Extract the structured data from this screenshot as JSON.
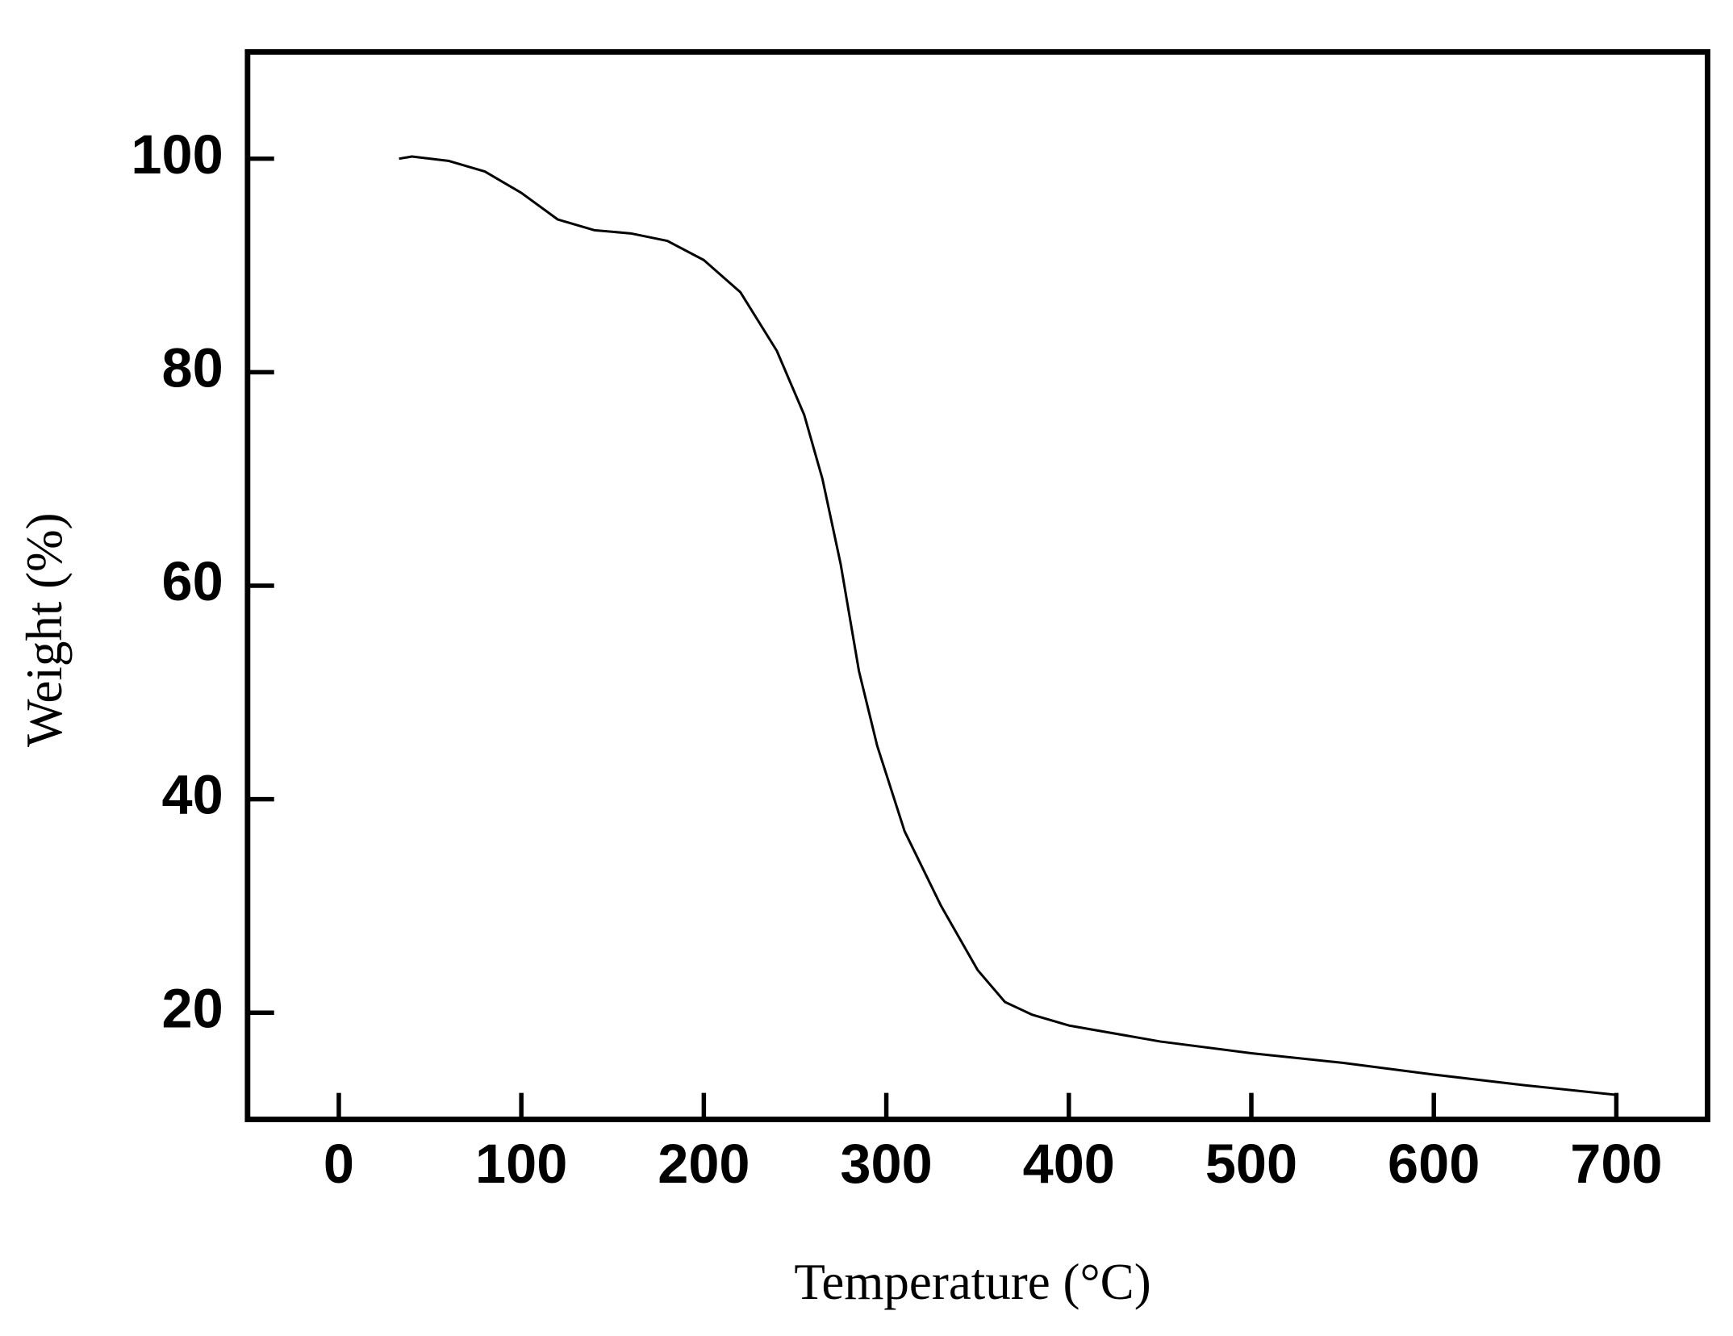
{
  "chart_data": {
    "type": "line",
    "x_label": "Temperature (°C)",
    "y_label": "Weight (%)",
    "x": [
      33,
      40,
      60,
      80,
      100,
      120,
      140,
      160,
      180,
      200,
      220,
      240,
      255,
      265,
      275,
      285,
      295,
      310,
      330,
      350,
      365,
      380,
      400,
      450,
      500,
      550,
      600,
      650,
      700
    ],
    "values": [
      100,
      100.2,
      99.8,
      98.8,
      96.8,
      94.3,
      93.3,
      93,
      92.3,
      90.5,
      87.5,
      82,
      76,
      70,
      62,
      52,
      45,
      37,
      30,
      24,
      21,
      19.8,
      18.8,
      17.3,
      16.2,
      15.3,
      14.2,
      13.2,
      12.3
    ],
    "color": "#000000",
    "xlim": [
      -50,
      750
    ],
    "xticks": [
      0,
      100,
      200,
      300,
      400,
      500,
      600,
      700
    ],
    "ylim": [
      10,
      110
    ],
    "yticks": [
      20,
      40,
      60,
      80,
      100
    ]
  }
}
